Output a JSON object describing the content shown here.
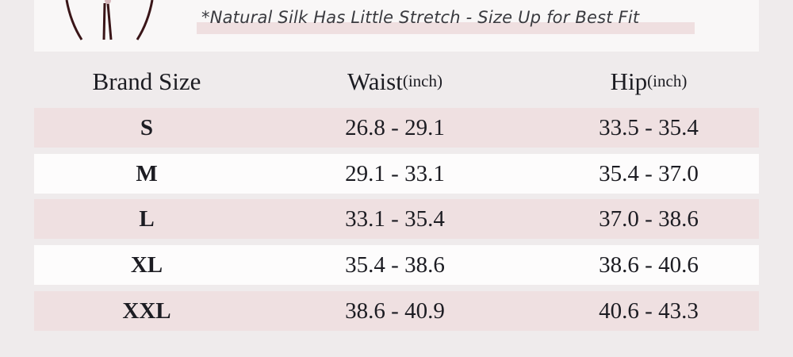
{
  "note": "*Natural Silk Has Little Stretch - Size Up for Best Fit",
  "headers": {
    "brand_size": "Brand Size",
    "waist": "Waist",
    "waist_unit": "(inch)",
    "hip": "Hip",
    "hip_unit": "(inch)"
  },
  "rows": [
    {
      "size": "S",
      "waist": "26.8 - 29.1",
      "hip": "33.5 - 35.4"
    },
    {
      "size": "M",
      "waist": "29.1 - 33.1",
      "hip": "35.4 - 37.0"
    },
    {
      "size": "L",
      "waist": "33.1 - 35.4",
      "hip": "37.0 - 38.6"
    },
    {
      "size": "XL",
      "waist": "35.4 - 38.6",
      "hip": "38.6 - 40.6"
    },
    {
      "size": "XXL",
      "waist": "38.6 - 40.9",
      "hip": "40.6 - 43.3"
    }
  ],
  "colors": {
    "row_pink": "#efe0e1",
    "row_white": "#fdfcfc",
    "line_art": "#3a1518"
  }
}
